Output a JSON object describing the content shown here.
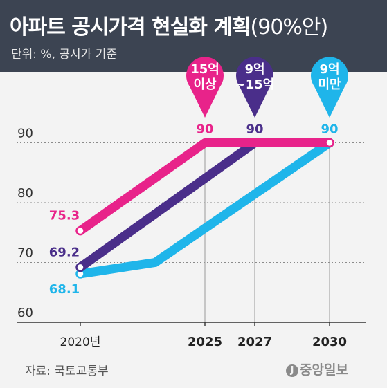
{
  "title": {
    "main": "아파트 공시가격 현실화 계획",
    "sub": "(90%안)"
  },
  "unit_label": "단위: %, 공시가 기준",
  "source": "자료: 국토교통부",
  "publisher": "중앙일보",
  "colors": {
    "header_bg": "#3c4452",
    "pink": "#e8238a",
    "purple": "#4a2e8a",
    "cyan": "#1fb5ea"
  },
  "chart_data": {
    "type": "line",
    "title": "아파트 공시가격 현실화 계획(90%안)",
    "unit": "단위: %, 공시가 기준",
    "x": [
      2020,
      2025,
      2027,
      2030
    ],
    "xticks": [
      "2020년",
      "2025",
      "2027",
      "2030"
    ],
    "ylim": [
      60,
      95
    ],
    "yticks": [
      60,
      70,
      80,
      90
    ],
    "grid": "dashed horizontal at 90, 80, 70",
    "series": [
      {
        "name": "15억 이상",
        "color": "#e8238a",
        "x": [
          2020,
          2025,
          2030
        ],
        "y": [
          75.3,
          90,
          90
        ],
        "start_label": "75.3",
        "end_label": "90"
      },
      {
        "name": "9억~15억",
        "color": "#4a2e8a",
        "x": [
          2020,
          2027,
          2030
        ],
        "y": [
          69.2,
          90,
          90
        ],
        "start_label": "69.2",
        "end_label": "90"
      },
      {
        "name": "9억 미만",
        "color": "#1fb5ea",
        "x": [
          2020,
          2023,
          2030
        ],
        "y": [
          68.1,
          70,
          90
        ],
        "start_label": "68.1",
        "end_label": "90"
      }
    ],
    "callouts": [
      {
        "lines": [
          "15억",
          "이상"
        ],
        "color": "#e8238a",
        "x": 2025
      },
      {
        "lines": [
          "9억",
          "~15억"
        ],
        "color": "#4a2e8a",
        "x": 2027
      },
      {
        "lines": [
          "9억",
          "미만"
        ],
        "color": "#1fb5ea",
        "x": 2030
      }
    ]
  }
}
